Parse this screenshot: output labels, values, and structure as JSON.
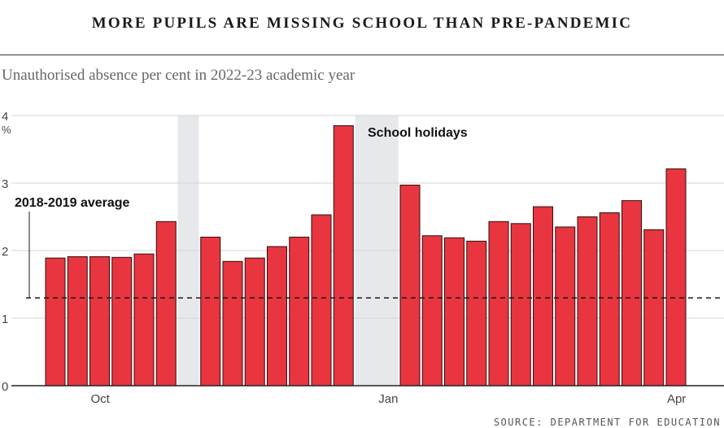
{
  "title": "MORE PUPILS ARE MISSING SCHOOL THAN PRE-PANDEMIC",
  "subtitle": "Unauthorised absence per cent in 2022-23 academic year",
  "source": "SOURCE: DEPARTMENT FOR EDUCATION",
  "colors": {
    "bar": "#e8353f",
    "holiday": "#e6e8eb",
    "baseline": "#222222"
  },
  "chart_data": {
    "type": "bar",
    "ylim": [
      0,
      4
    ],
    "y_ticks": [
      "0",
      "1",
      "2",
      "3",
      "4"
    ],
    "y_unit": "%",
    "x_ticks": [
      {
        "label": "Oct",
        "slot": 2.5
      },
      {
        "label": "Jan",
        "slot": 15.5
      },
      {
        "label": "Apr",
        "slot": 28.5
      }
    ],
    "values": [
      1.89,
      1.91,
      1.91,
      1.9,
      1.95,
      2.43,
      null,
      2.2,
      1.84,
      1.89,
      2.06,
      2.2,
      2.53,
      3.85,
      null,
      null,
      2.97,
      2.22,
      2.19,
      2.14,
      2.43,
      2.4,
      2.65,
      2.35,
      2.5,
      2.56,
      2.74,
      2.31,
      3.21
    ],
    "holidays": [
      [
        6,
        6
      ],
      [
        14,
        15
      ]
    ],
    "holiday_label": "School holidays",
    "average": {
      "label": "2018-2019 average",
      "value": 1.3
    }
  }
}
